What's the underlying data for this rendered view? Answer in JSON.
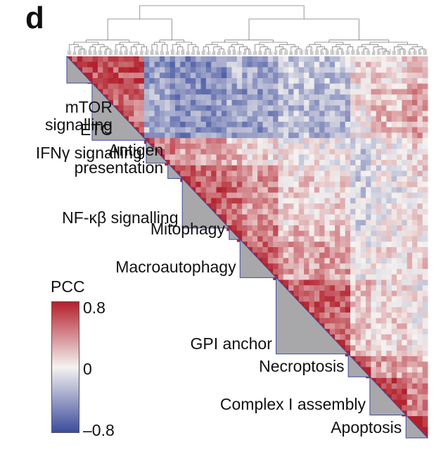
{
  "panel_letter": "d",
  "chart_data": {
    "type": "heatmap",
    "layout": "lower-triangle correlation matrix with dendrogram",
    "colorbar": {
      "title": "PCC",
      "range": [
        -0.8,
        0.8
      ],
      "ticks": [
        "0.8",
        "0",
        "–0.8"
      ],
      "colors": {
        "low": "#3b4c9c",
        "mid": "#f5f2f0",
        "high": "#b2202c"
      }
    },
    "diagonal_fill": "#a8a8ab",
    "module_outline": "#3d4aa0",
    "modules": [
      {
        "label": "mTOR\nsignalling",
        "start": 0.0,
        "end": 0.07
      },
      {
        "label": "ETC",
        "start": 0.07,
        "end": 0.22
      },
      {
        "label": "IFNγ signalling",
        "start": 0.22,
        "end": 0.28
      },
      {
        "label": "Antigen\npresentation",
        "start": 0.28,
        "end": 0.32
      },
      {
        "label": "NF-κβ signalling",
        "start": 0.32,
        "end": 0.45
      },
      {
        "label": "Mitophagy",
        "start": 0.45,
        "end": 0.48
      },
      {
        "label": "Macroautophagy",
        "start": 0.48,
        "end": 0.58
      },
      {
        "label": "GPI anchor",
        "start": 0.58,
        "end": 0.78
      },
      {
        "label": "Necroptosis",
        "start": 0.78,
        "end": 0.84
      },
      {
        "label": "Complex I assembly",
        "start": 0.84,
        "end": 0.94
      },
      {
        "label": "Apoptosis",
        "start": 0.94,
        "end": 1.0
      }
    ],
    "block_correlation": [
      [
        0.7,
        0.6,
        -0.4,
        -0.5,
        -0.5,
        -0.3,
        -0.35,
        -0.2,
        0.1,
        0.1,
        0.15
      ],
      [
        0.6,
        0.5,
        -0.3,
        -0.45,
        -0.45,
        -0.35,
        -0.4,
        -0.25,
        0.05,
        0.2,
        0.3
      ],
      [
        -0.4,
        -0.3,
        0.45,
        0.4,
        0.3,
        0.2,
        0.1,
        0.0,
        -0.2,
        0.0,
        0.1
      ],
      [
        -0.5,
        -0.45,
        0.4,
        0.65,
        0.5,
        0.4,
        0.3,
        0.05,
        -0.2,
        -0.05,
        0.1
      ],
      [
        -0.5,
        -0.45,
        0.3,
        0.5,
        0.6,
        0.5,
        0.35,
        0.1,
        -0.15,
        -0.05,
        0.05
      ],
      [
        -0.3,
        -0.35,
        0.2,
        0.4,
        0.5,
        0.55,
        0.45,
        0.2,
        -0.1,
        0.0,
        0.05
      ],
      [
        -0.35,
        -0.4,
        0.1,
        0.3,
        0.35,
        0.45,
        0.55,
        0.3,
        0.0,
        0.05,
        0.1
      ],
      [
        -0.2,
        -0.25,
        0.0,
        0.05,
        0.1,
        0.2,
        0.3,
        0.55,
        0.2,
        0.1,
        0.0
      ],
      [
        0.1,
        0.05,
        -0.2,
        -0.2,
        -0.15,
        -0.1,
        0.0,
        0.2,
        0.6,
        0.3,
        0.2
      ],
      [
        0.1,
        0.2,
        0.0,
        -0.05,
        -0.05,
        0.0,
        0.05,
        0.1,
        0.3,
        0.6,
        0.4
      ],
      [
        0.15,
        0.3,
        0.1,
        0.1,
        0.05,
        0.05,
        0.1,
        0.0,
        0.2,
        0.4,
        0.65
      ]
    ]
  }
}
